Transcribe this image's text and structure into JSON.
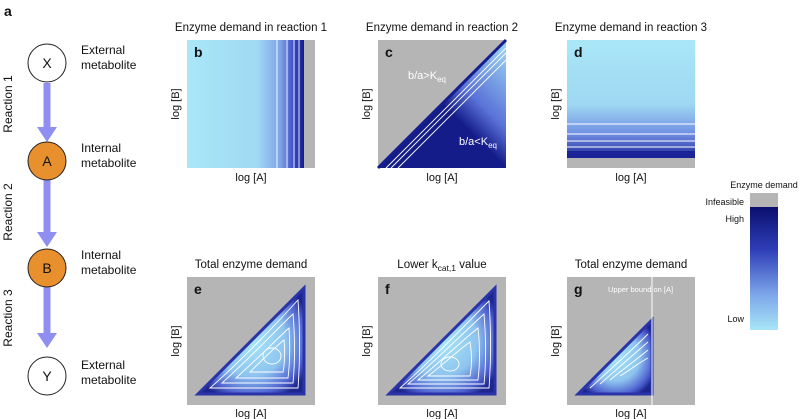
{
  "figure_label": "a",
  "pathway": {
    "nodes": [
      {
        "letter": "X",
        "label_line1": "External",
        "label_line2": "metabolite",
        "fill": "#ffffff"
      },
      {
        "letter": "A",
        "label_line1": "Internal",
        "label_line2": "metabolite",
        "fill": "#e8902e"
      },
      {
        "letter": "B",
        "label_line1": "Internal",
        "label_line2": "metabolite",
        "fill": "#e8902e"
      },
      {
        "letter": "Y",
        "label_line1": "External",
        "label_line2": "metabolite",
        "fill": "#ffffff"
      }
    ],
    "reactions": [
      "Reaction 1",
      "Reaction 2",
      "Reaction 3"
    ],
    "arrow_color": "#8f8ff2"
  },
  "panels": [
    {
      "letter": "b",
      "title": "Enzyme demand in reaction 1",
      "xlabel": "log [A]",
      "ylabel": "log [B]"
    },
    {
      "letter": "c",
      "title": "Enzyme demand in reaction 2",
      "xlabel": "log [A]",
      "ylabel": "log [B]",
      "annot_upper_main": "b/a>K",
      "annot_upper_sub": "eq",
      "annot_lower_main": "b/a<K",
      "annot_lower_sub": "eq"
    },
    {
      "letter": "d",
      "title": "Enzyme demand in reaction 3",
      "xlabel": "log [A]",
      "ylabel": "log [B]"
    },
    {
      "letter": "e",
      "title": "Total enzyme demand",
      "xlabel": "log [A]",
      "ylabel": "log [B]"
    },
    {
      "letter": "f",
      "title_main": "Lower k",
      "title_sub": "cat,1",
      "title_tail": " value",
      "xlabel": "log [A]",
      "ylabel": "log [B]"
    },
    {
      "letter": "g",
      "title": "Total enzyme demand",
      "xlabel": "log [A]",
      "ylabel": "log [B]",
      "annot": "Upper bound on [A]"
    }
  ],
  "legend": {
    "title": "Enzyme demand",
    "infeasible": "Infeasible",
    "high": "High",
    "low": "Low"
  },
  "colors": {
    "infeasible": "#b5b5b5",
    "low": "#a8e6f8",
    "high": "#0a0f6e",
    "contour": "#ffffff"
  }
}
